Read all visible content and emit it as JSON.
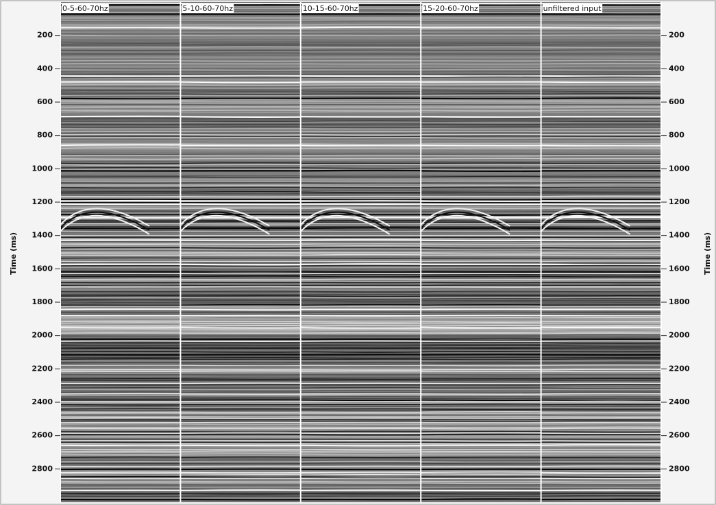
{
  "chart_data": {
    "type": "seismic",
    "categories": [
      "0-5-60-70hz",
      "5-10-60-70hz",
      "10-15-60-70hz",
      "15-20-60-70hz",
      "unfiltered input"
    ],
    "y_label": "Time (ms)",
    "ylim": [
      0,
      3000
    ],
    "yticks": [
      200,
      400,
      600,
      800,
      1000,
      1200,
      1400,
      1600,
      1800,
      2000,
      2200,
      2400,
      2600,
      2800
    ]
  }
}
